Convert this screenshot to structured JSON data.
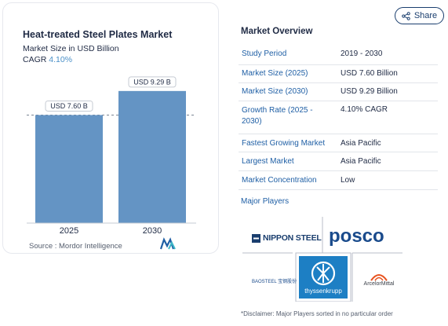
{
  "chart_data": {
    "type": "bar",
    "title": "Heat-treated Steel Plates Market",
    "subtitle": "Market Size in USD Billion",
    "cagr_label": "CAGR",
    "cagr_value": "4.10%",
    "categories": [
      "2025",
      "2030"
    ],
    "values": [
      7.6,
      9.29
    ],
    "data_labels": [
      "USD 7.60 B",
      "USD 9.29 B"
    ],
    "ylim": [
      0,
      10
    ],
    "bar_color": "#6494c4",
    "reference_line": 7.6,
    "grid": false,
    "legend": "none"
  },
  "source": "Source :  Mordor Intelligence",
  "share": {
    "label": "Share",
    "icon": "share-icon"
  },
  "overview": {
    "title": "Market Overview",
    "rows": [
      {
        "key": "Study Period",
        "value": "2019 - 2030"
      },
      {
        "key": "Market Size (2025)",
        "value": "USD 7.60 Billion"
      },
      {
        "key": "Market Size (2030)",
        "value": "USD 9.29 Billion"
      },
      {
        "key": "Growth Rate (2025 - 2030)",
        "value": "4.10% CAGR"
      },
      {
        "key": "Fastest Growing Market",
        "value": "Asia Pacific"
      },
      {
        "key": "Largest Market",
        "value": "Asia Pacific"
      },
      {
        "key": "Market Concentration",
        "value": "Low"
      }
    ],
    "major_players_label": "Major Players"
  },
  "players": {
    "nippon": "NIPPON STEEL",
    "posco": "posco",
    "thyssenkrupp": "thyssenkrupp",
    "arcelormittal": "ArcelorMittal",
    "baosteel": "BAOSTEEL 宝钢股份"
  },
  "disclaimer": "*Disclaimer: Major Players sorted in no particular order",
  "colors": {
    "accent": "#4a90c8",
    "link": "#1f5fa5",
    "thyssen_blue": "#1d7fc4",
    "arcelor_orange": "#e8531f"
  }
}
